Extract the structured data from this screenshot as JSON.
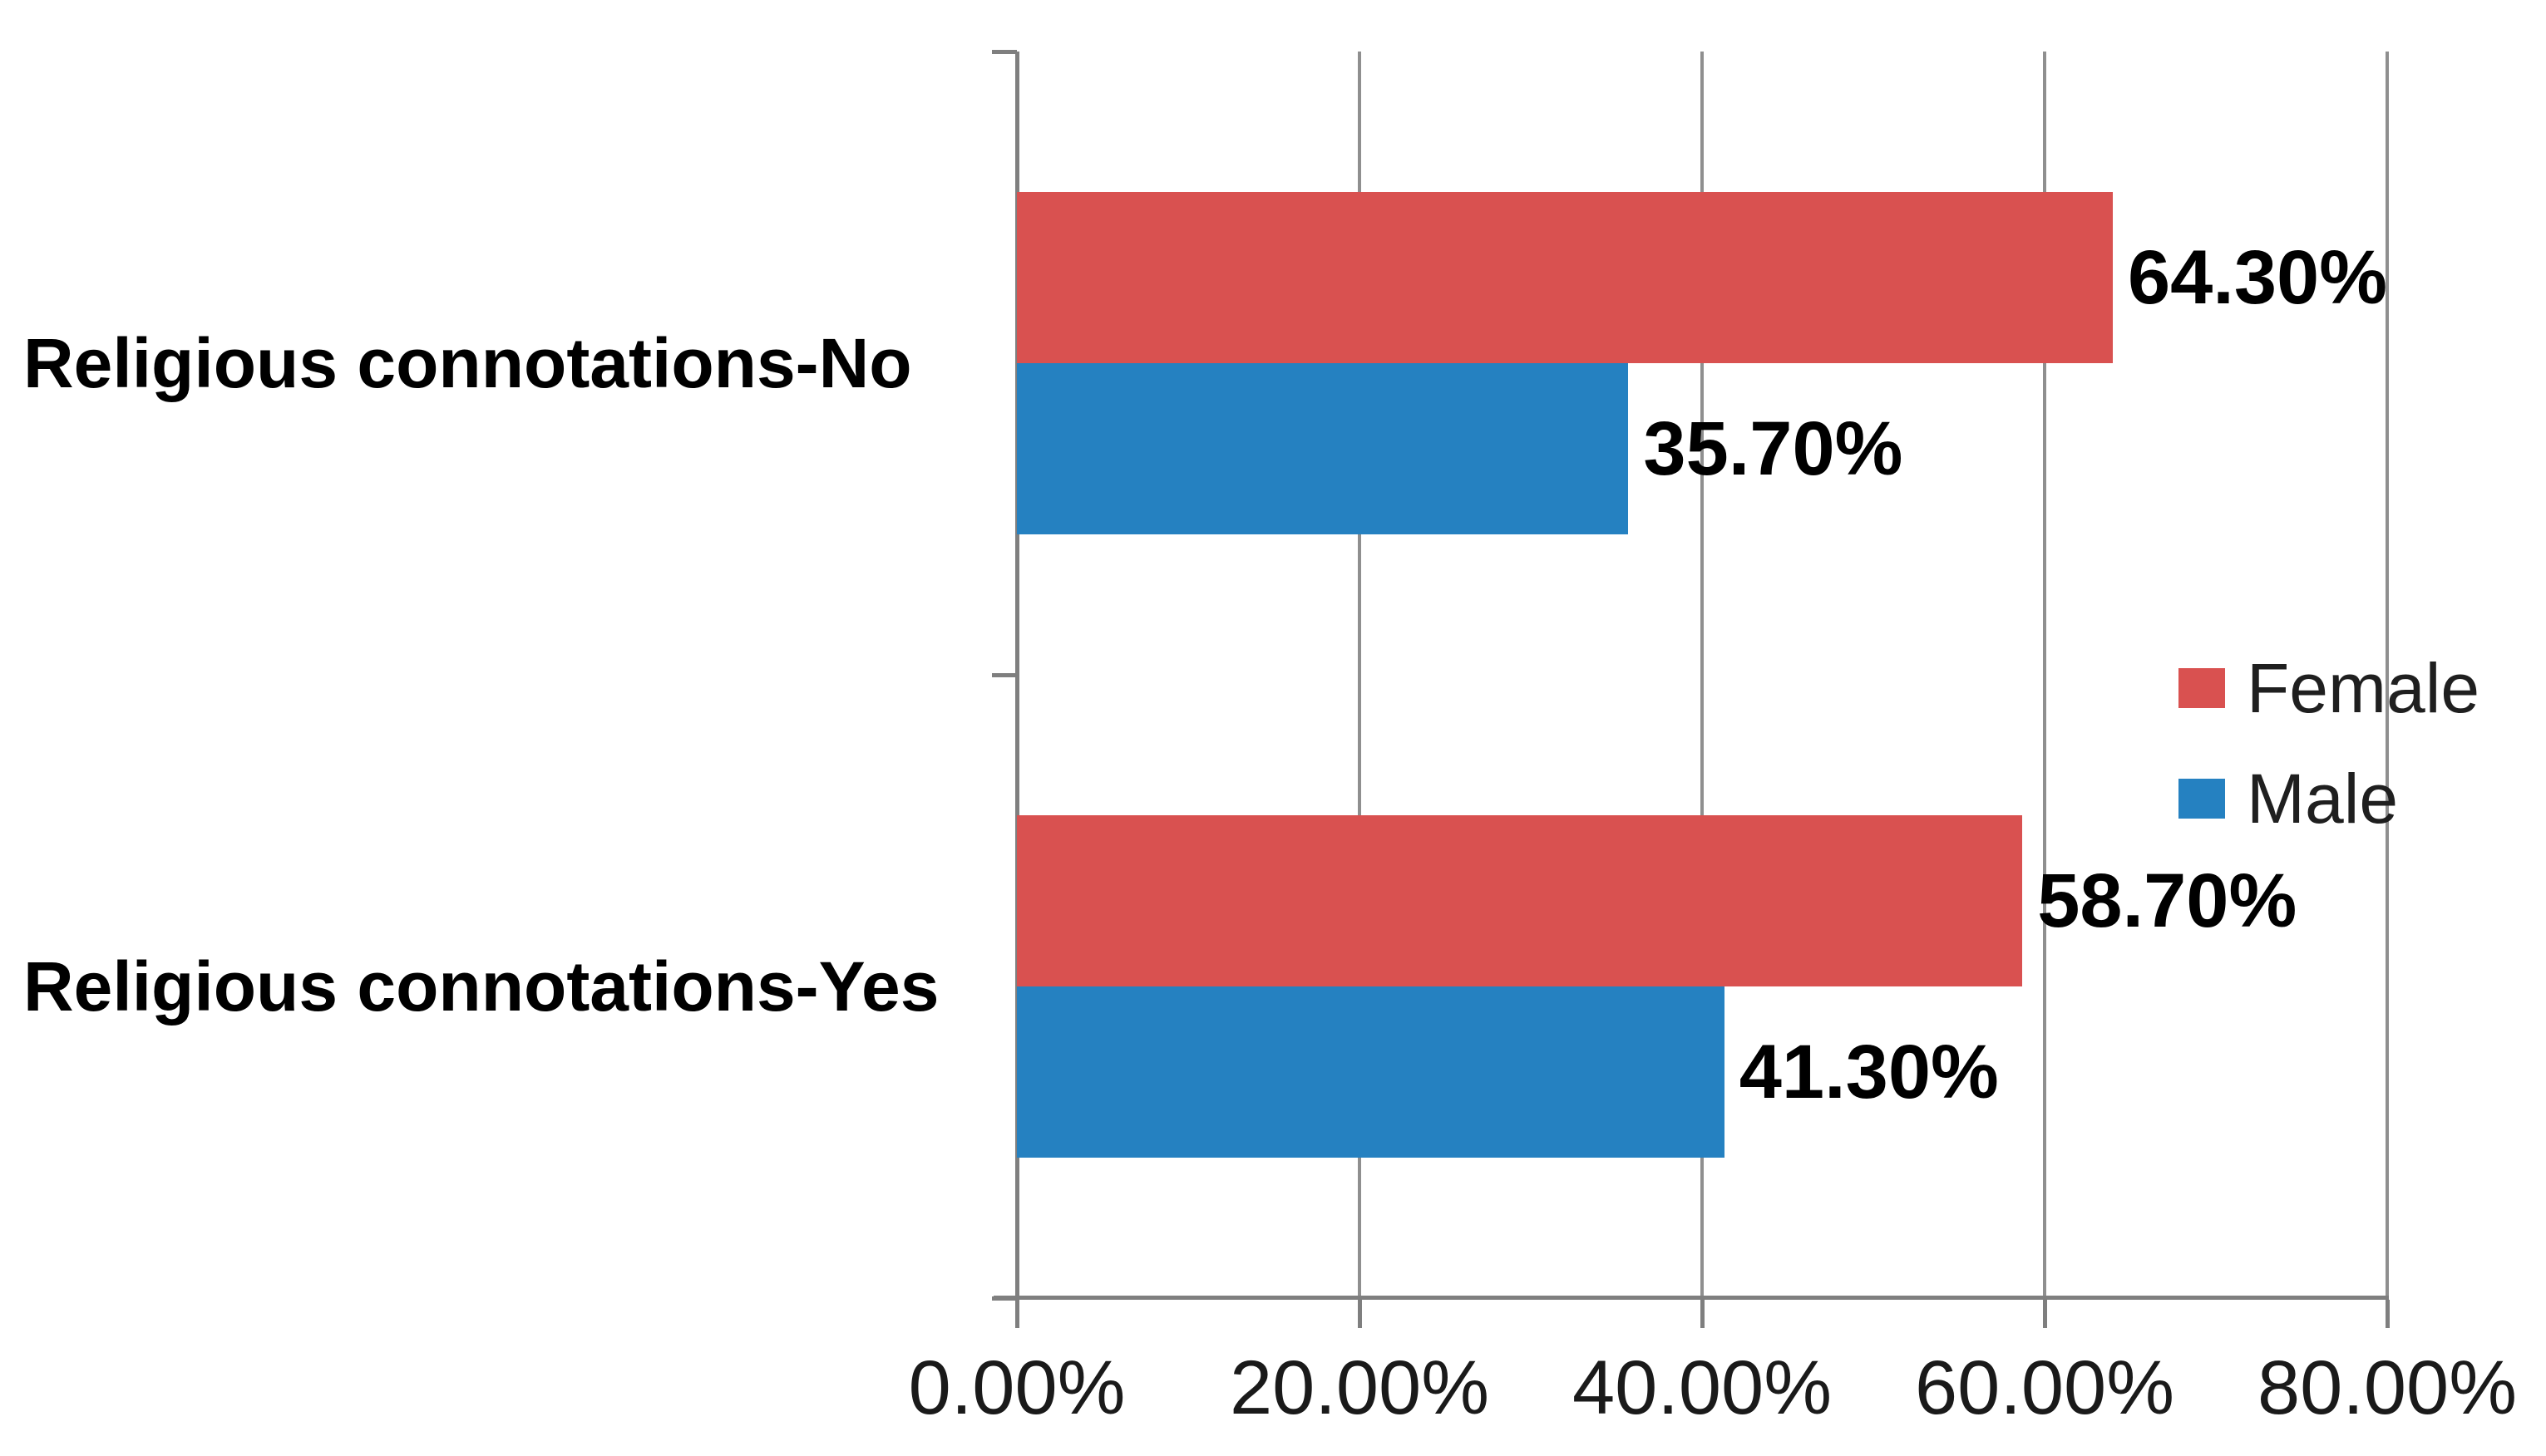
{
  "chart_data": {
    "type": "bar",
    "orientation": "horizontal",
    "categories": [
      "Religious connotations-No",
      "Religious connotations-Yes"
    ],
    "series": [
      {
        "name": "Female",
        "color": "#d95150",
        "values": [
          64.3,
          58.7
        ],
        "labels": [
          "64.30%",
          "58.70%"
        ]
      },
      {
        "name": "Male",
        "color": "#2581c1",
        "values": [
          35.7,
          41.3
        ],
        "labels": [
          "35.70%",
          "41.30%"
        ]
      }
    ],
    "xlim": [
      0,
      80
    ],
    "x_ticks": [
      {
        "value": 0,
        "label": "0.00%"
      },
      {
        "value": 20,
        "label": "20.00%"
      },
      {
        "value": 40,
        "label": "40.00%"
      },
      {
        "value": 60,
        "label": "60.00%"
      },
      {
        "value": 80,
        "label": "80.00%"
      },
      {
        "value": 100,
        "label": ""
      }
    ],
    "grid": true,
    "legend_position": "middle-right",
    "colors": {
      "gridline_gray": "#8f8f8f",
      "axis_gray": "#7f7f7f",
      "label_black": "#000000",
      "tick_text": "#1a1a1a"
    }
  }
}
